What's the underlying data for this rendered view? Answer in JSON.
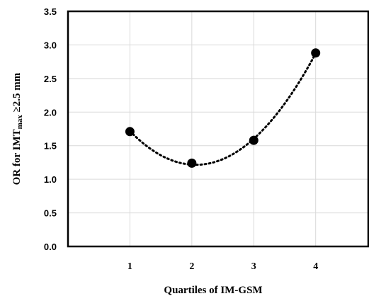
{
  "chart_data": {
    "type": "scatter",
    "xlabel": "Quartiles of IM-GSM",
    "ylabel": {
      "prefix": "OR for IMT",
      "subscript": "max",
      "suffix": " ≥2.5 mm"
    },
    "ylim": [
      0.0,
      3.5
    ],
    "yticks": [
      "0.0",
      "0.5",
      "1.0",
      "1.5",
      "2.0",
      "2.5",
      "3.0",
      "3.5"
    ],
    "xlim": [
      0,
      4.85
    ],
    "xticks": [
      "1",
      "2",
      "3",
      "4"
    ],
    "grid": true,
    "legend": "none",
    "trendline": "polynomial, dotted",
    "points": [
      {
        "x": 1,
        "y": 1.71
      },
      {
        "x": 2,
        "y": 1.24
      },
      {
        "x": 3,
        "y": 1.58
      },
      {
        "x": 4,
        "y": 2.88
      }
    ]
  }
}
